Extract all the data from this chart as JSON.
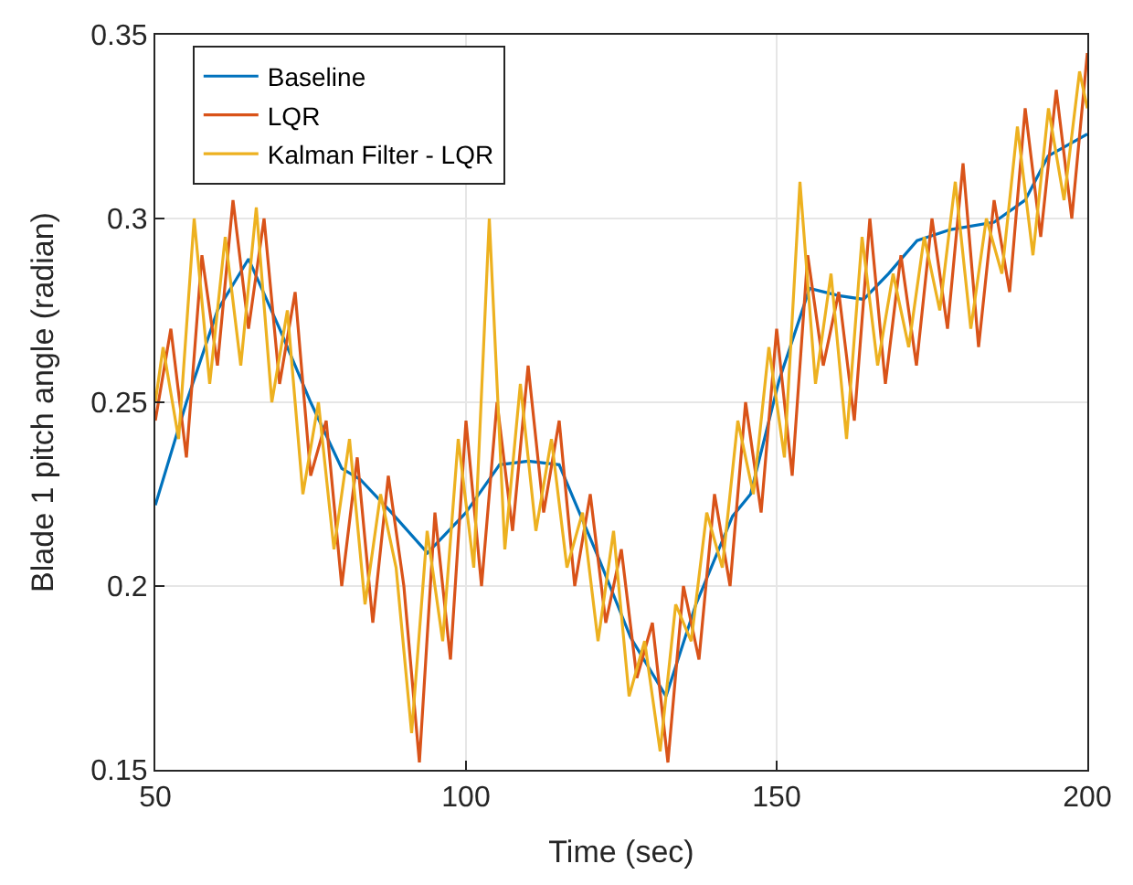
{
  "chart_data": {
    "type": "line",
    "xlabel": "Time (sec)",
    "ylabel": "Blade 1 pitch angle (radian)",
    "xlim": [
      50,
      200
    ],
    "xticks": [
      50,
      100,
      150,
      200
    ],
    "ylim": [
      0.15,
      0.35
    ],
    "yticks": [
      0.15,
      0.2,
      0.25,
      0.3,
      0.35
    ],
    "grid": true,
    "legend": "top left",
    "series": [
      {
        "name": "Baseline",
        "color": "#0072bd",
        "x": [
          50,
          55,
          60,
          65,
          70,
          75,
          80,
          83,
          88,
          93.8,
          100,
          105.4,
          110,
          115,
          121.5,
          126.5,
          132.2,
          137,
          142.9,
          145.8,
          150.4,
          155.3,
          160,
          164,
          168,
          172.6,
          178,
          185,
          190,
          193.7,
          200
        ],
        "values": [
          0.222,
          0.25,
          0.275,
          0.289,
          0.27,
          0.25,
          0.232,
          0.229,
          0.22,
          0.209,
          0.22,
          0.233,
          0.234,
          0.233,
          0.207,
          0.186,
          0.17,
          0.195,
          0.219,
          0.225,
          0.256,
          0.281,
          0.279,
          0.278,
          0.285,
          0.294,
          0.297,
          0.299,
          0.305,
          0.317,
          0.323
        ]
      },
      {
        "name": "LQR",
        "color": "#d95319",
        "x": [
          50,
          52.5,
          55,
          57.5,
          60,
          62.5,
          65,
          67.5,
          70,
          72.5,
          75,
          77.5,
          80,
          82.5,
          85,
          87.5,
          90,
          92.5,
          95,
          97.5,
          100,
          102.5,
          105,
          107.5,
          110,
          112.5,
          115,
          117.5,
          120,
          122.5,
          125,
          127.5,
          130,
          132.5,
          135,
          137.5,
          140,
          142.5,
          145,
          147.5,
          150,
          152.5,
          155,
          157.5,
          160,
          162.5,
          165,
          167.5,
          170,
          172.5,
          175,
          177.5,
          180,
          182.5,
          185,
          187.5,
          190,
          192.5,
          195,
          197.5,
          200
        ],
        "values": [
          0.245,
          0.27,
          0.235,
          0.29,
          0.26,
          0.305,
          0.27,
          0.3,
          0.255,
          0.28,
          0.23,
          0.245,
          0.2,
          0.235,
          0.19,
          0.23,
          0.2,
          0.152,
          0.22,
          0.18,
          0.245,
          0.2,
          0.25,
          0.215,
          0.26,
          0.22,
          0.245,
          0.2,
          0.225,
          0.19,
          0.21,
          0.175,
          0.19,
          0.152,
          0.2,
          0.18,
          0.225,
          0.2,
          0.25,
          0.22,
          0.27,
          0.23,
          0.29,
          0.26,
          0.28,
          0.245,
          0.3,
          0.255,
          0.29,
          0.26,
          0.3,
          0.27,
          0.315,
          0.265,
          0.305,
          0.28,
          0.33,
          0.295,
          0.335,
          0.3,
          0.345
        ]
      },
      {
        "name": "Kalman Filter - LQR",
        "color": "#edb120",
        "x": [
          50,
          51.25,
          53.75,
          56.25,
          58.75,
          61.25,
          63.75,
          66.25,
          68.75,
          71.25,
          73.75,
          76.25,
          78.75,
          81.25,
          83.75,
          86.25,
          88.75,
          91.25,
          93.75,
          96.25,
          98.75,
          101.25,
          103.75,
          106.25,
          108.75,
          111.25,
          113.75,
          116.25,
          118.75,
          121.25,
          123.75,
          126.25,
          128.75,
          131.25,
          133.75,
          136.25,
          138.75,
          141.25,
          143.75,
          146.25,
          148.75,
          151.25,
          153.75,
          156.25,
          158.75,
          161.25,
          163.75,
          166.25,
          168.75,
          171.25,
          173.75,
          176.25,
          178.75,
          181.25,
          183.75,
          186.25,
          188.75,
          191.25,
          193.75,
          196.25,
          198.75,
          200
        ],
        "values": [
          0.25,
          0.265,
          0.24,
          0.3,
          0.255,
          0.295,
          0.26,
          0.303,
          0.25,
          0.275,
          0.225,
          0.25,
          0.21,
          0.24,
          0.195,
          0.225,
          0.205,
          0.16,
          0.215,
          0.185,
          0.24,
          0.205,
          0.3,
          0.21,
          0.255,
          0.215,
          0.24,
          0.205,
          0.22,
          0.185,
          0.215,
          0.17,
          0.185,
          0.155,
          0.195,
          0.185,
          0.22,
          0.205,
          0.245,
          0.225,
          0.265,
          0.235,
          0.31,
          0.255,
          0.285,
          0.24,
          0.295,
          0.26,
          0.285,
          0.265,
          0.295,
          0.275,
          0.31,
          0.27,
          0.3,
          0.285,
          0.325,
          0.29,
          0.33,
          0.305,
          0.34,
          0.33
        ]
      }
    ]
  }
}
